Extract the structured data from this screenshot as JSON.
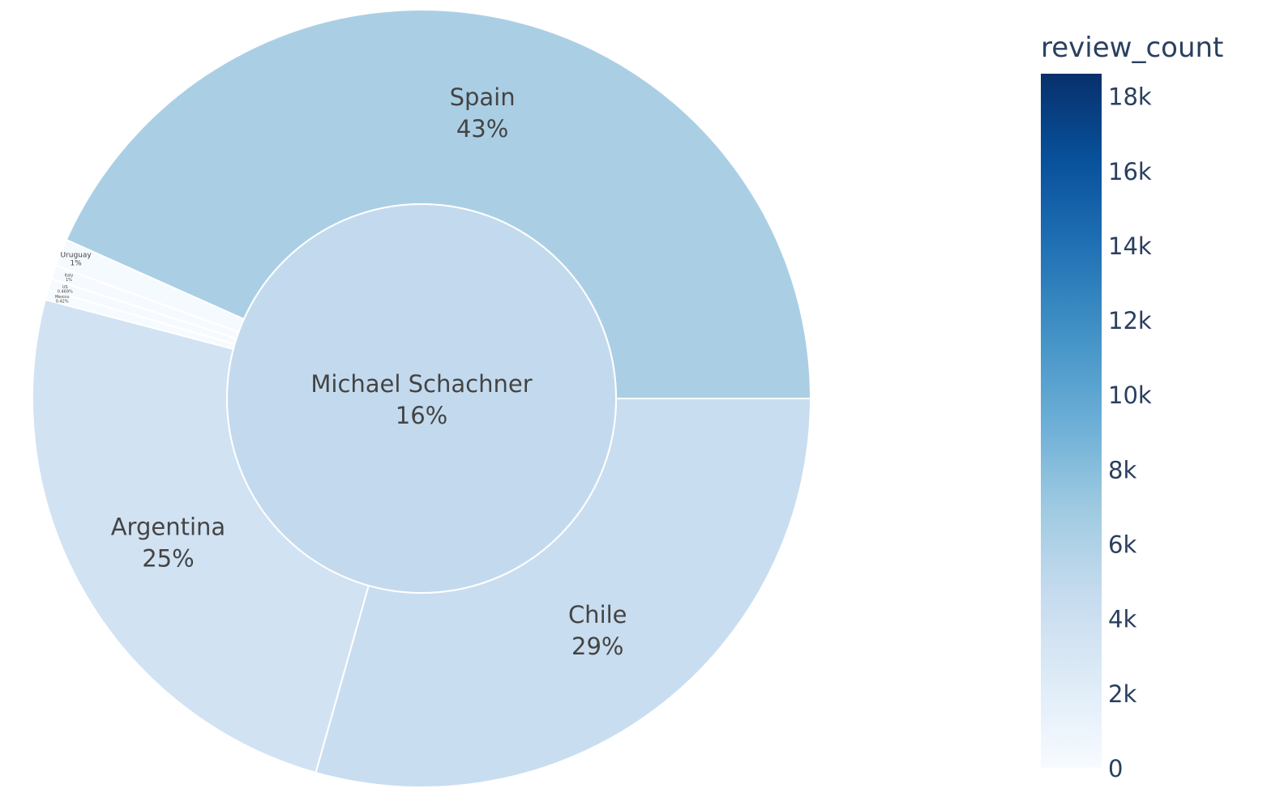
{
  "chart_data": {
    "type": "sunburst",
    "root": {
      "label": "Michael Schachner",
      "percent_label": "16%"
    },
    "children": [
      {
        "label": "Spain",
        "percent_label": "43%",
        "share": 0.4331,
        "review_count": 6300
      },
      {
        "label": "Uruguay",
        "percent_label": "1%",
        "share": 0.0114,
        "review_count": 200
      },
      {
        "label": "Italy",
        "percent_label": "1%",
        "share": 0.0057,
        "review_count": 100
      },
      {
        "label": "US",
        "percent_label": "0.469%",
        "share": 0.0047,
        "review_count": 80
      },
      {
        "label": "Mexico",
        "percent_label": "0.42%",
        "share": 0.0042,
        "review_count": 70
      },
      {
        "label": "Argentina",
        "percent_label": "25%",
        "share": 0.2471,
        "review_count": 3600
      },
      {
        "label": "Chile",
        "percent_label": "29%",
        "share": 0.2938,
        "review_count": 4400
      }
    ],
    "colorbar": {
      "title": "review_count",
      "min": 0,
      "max": 18600,
      "ticks": [
        {
          "value": 0,
          "label": "0"
        },
        {
          "value": 2000,
          "label": "2k"
        },
        {
          "value": 4000,
          "label": "4k"
        },
        {
          "value": 6000,
          "label": "6k"
        },
        {
          "value": 8000,
          "label": "8k"
        },
        {
          "value": 10000,
          "label": "10k"
        },
        {
          "value": 12000,
          "label": "12k"
        },
        {
          "value": 14000,
          "label": "14k"
        },
        {
          "value": 16000,
          "label": "16k"
        },
        {
          "value": 18000,
          "label": "18k"
        }
      ],
      "colorscale": [
        "#f7fbff",
        "#deebf7",
        "#c6dbef",
        "#9ecae1",
        "#6baed6",
        "#4292c6",
        "#2171b5",
        "#08519c",
        "#08306b"
      ]
    },
    "root_review_count": 4850
  }
}
